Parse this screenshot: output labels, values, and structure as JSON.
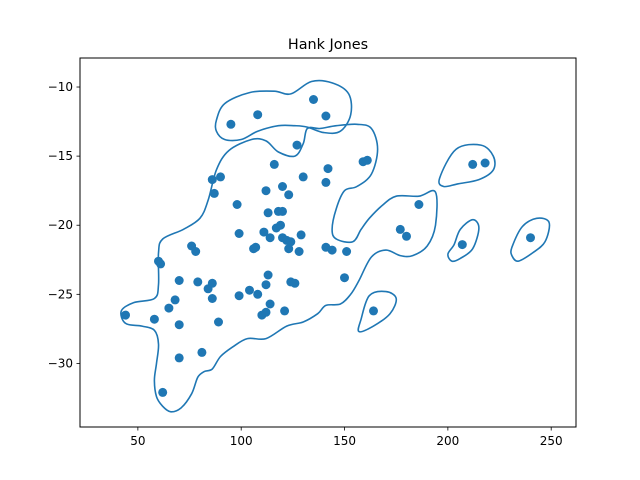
{
  "chart_data": {
    "type": "scatter",
    "title": "Hank Jones",
    "xlabel": "",
    "ylabel": "",
    "xlim": [
      22,
      262
    ],
    "ylim": [
      -34.6,
      -7.9
    ],
    "xticks": [
      50,
      100,
      150,
      200,
      250
    ],
    "yticks": [
      -10,
      -15,
      -20,
      -25,
      -30
    ],
    "grid": false,
    "color": "#1f77b4",
    "points": [
      [
        44,
        -26.5
      ],
      [
        58,
        -26.8
      ],
      [
        60,
        -22.6
      ],
      [
        61,
        -22.8
      ],
      [
        62,
        -32.1
      ],
      [
        65,
        -26.0
      ],
      [
        68,
        -25.4
      ],
      [
        70,
        -24.0
      ],
      [
        70,
        -27.2
      ],
      [
        70,
        -29.6
      ],
      [
        76,
        -21.5
      ],
      [
        78,
        -21.9
      ],
      [
        79,
        -24.1
      ],
      [
        81,
        -29.2
      ],
      [
        84,
        -24.6
      ],
      [
        86,
        -16.7
      ],
      [
        86,
        -24.2
      ],
      [
        86,
        -25.3
      ],
      [
        87,
        -17.7
      ],
      [
        89,
        -27.0
      ],
      [
        90,
        -16.5
      ],
      [
        95,
        -12.7
      ],
      [
        98,
        -18.5
      ],
      [
        99,
        -20.6
      ],
      [
        99,
        -25.1
      ],
      [
        104,
        -24.7
      ],
      [
        106,
        -21.7
      ],
      [
        107,
        -21.6
      ],
      [
        108,
        -25.0
      ],
      [
        108,
        -12.0
      ],
      [
        110,
        -26.5
      ],
      [
        111,
        -20.5
      ],
      [
        112,
        -17.5
      ],
      [
        112,
        -24.3
      ],
      [
        112,
        -26.3
      ],
      [
        113,
        -23.6
      ],
      [
        113,
        -19.1
      ],
      [
        114,
        -20.9
      ],
      [
        114,
        -25.7
      ],
      [
        116,
        -15.6
      ],
      [
        117,
        -20.2
      ],
      [
        118,
        -19.0
      ],
      [
        119,
        -20.0
      ],
      [
        120,
        -17.2
      ],
      [
        120,
        -19.0
      ],
      [
        120,
        -20.9
      ],
      [
        121,
        -26.2
      ],
      [
        122,
        -21.1
      ],
      [
        123,
        -17.8
      ],
      [
        123,
        -21.7
      ],
      [
        124,
        -24.1
      ],
      [
        124,
        -21.2
      ],
      [
        126,
        -24.2
      ],
      [
        127,
        -14.2
      ],
      [
        128,
        -21.9
      ],
      [
        129,
        -20.7
      ],
      [
        130,
        -16.5
      ],
      [
        135,
        -10.9
      ],
      [
        141,
        -16.9
      ],
      [
        141,
        -21.6
      ],
      [
        141,
        -12.1
      ],
      [
        142,
        -15.9
      ],
      [
        144,
        -21.8
      ],
      [
        150,
        -23.8
      ],
      [
        151,
        -21.9
      ],
      [
        159,
        -15.4
      ],
      [
        161,
        -15.3
      ],
      [
        164,
        -26.2
      ],
      [
        177,
        -20.3
      ],
      [
        180,
        -20.8
      ],
      [
        186,
        -18.5
      ],
      [
        207,
        -21.4
      ],
      [
        212,
        -15.6
      ],
      [
        218,
        -15.5
      ],
      [
        240,
        -20.9
      ]
    ],
    "contours": [
      [
        [
          44,
          -27.1
        ],
        [
          42,
          -26.2
        ],
        [
          48,
          -25.6
        ],
        [
          58,
          -25.3
        ],
        [
          60,
          -24.3
        ],
        [
          60,
          -22.0
        ],
        [
          62,
          -21.0
        ],
        [
          72,
          -20.3
        ],
        [
          80,
          -19.5
        ],
        [
          84,
          -18.2
        ],
        [
          88,
          -16.0
        ],
        [
          94,
          -14.6
        ],
        [
          105,
          -13.8
        ],
        [
          112,
          -13.9
        ],
        [
          118,
          -14.7
        ],
        [
          126,
          -15.0
        ],
        [
          130,
          -14.1
        ],
        [
          132,
          -13.0
        ],
        [
          138,
          -13.0
        ],
        [
          146,
          -12.8
        ],
        [
          156,
          -12.7
        ],
        [
          163,
          -13.0
        ],
        [
          166,
          -14.5
        ],
        [
          163,
          -16.3
        ],
        [
          156,
          -17.2
        ],
        [
          150,
          -17.5
        ],
        [
          146,
          -18.8
        ],
        [
          144,
          -20.3
        ],
        [
          146,
          -21.0
        ],
        [
          154,
          -21.2
        ],
        [
          158,
          -20.3
        ],
        [
          162,
          -19.5
        ],
        [
          168,
          -18.6
        ],
        [
          175,
          -17.9
        ],
        [
          186,
          -17.9
        ],
        [
          194,
          -17.6
        ],
        [
          194,
          -20.0
        ],
        [
          190,
          -21.5
        ],
        [
          183,
          -22.2
        ],
        [
          177,
          -22.2
        ],
        [
          170,
          -21.8
        ],
        [
          163,
          -22.3
        ],
        [
          157,
          -24.0
        ],
        [
          153,
          -25.0
        ],
        [
          148,
          -25.7
        ],
        [
          141,
          -25.8
        ],
        [
          137,
          -26.4
        ],
        [
          130,
          -27.0
        ],
        [
          122,
          -27.3
        ],
        [
          112,
          -28.2
        ],
        [
          103,
          -28.2
        ],
        [
          96,
          -28.8
        ],
        [
          90,
          -29.5
        ],
        [
          86,
          -30.4
        ],
        [
          82,
          -30.6
        ],
        [
          79,
          -31.0
        ],
        [
          76,
          -32.2
        ],
        [
          71,
          -33.2
        ],
        [
          66,
          -33.5
        ],
        [
          62,
          -33.1
        ],
        [
          59,
          -32.4
        ],
        [
          58,
          -31.2
        ],
        [
          59,
          -30.0
        ],
        [
          60,
          -28.6
        ],
        [
          58,
          -27.6
        ],
        [
          52,
          -27.3
        ],
        [
          44,
          -27.1
        ]
      ],
      [
        [
          88,
          -12.4
        ],
        [
          92,
          -11.2
        ],
        [
          104,
          -10.4
        ],
        [
          116,
          -10.3
        ],
        [
          124,
          -10.5
        ],
        [
          134,
          -9.6
        ],
        [
          144,
          -9.7
        ],
        [
          152,
          -10.5
        ],
        [
          153,
          -12.0
        ],
        [
          148,
          -13.2
        ],
        [
          140,
          -13.3
        ],
        [
          132,
          -12.9
        ],
        [
          126,
          -12.8
        ],
        [
          118,
          -12.8
        ],
        [
          108,
          -13.2
        ],
        [
          100,
          -13.8
        ],
        [
          92,
          -13.8
        ],
        [
          88,
          -13.2
        ],
        [
          88,
          -12.4
        ]
      ],
      [
        [
          196,
          -16.6
        ],
        [
          204,
          -14.5
        ],
        [
          216,
          -14.2
        ],
        [
          222,
          -15.0
        ],
        [
          222,
          -16.0
        ],
        [
          215,
          -16.7
        ],
        [
          205,
          -17.0
        ],
        [
          198,
          -17.2
        ],
        [
          196,
          -16.6
        ]
      ],
      [
        [
          203,
          -21.4
        ],
        [
          206,
          -20.3
        ],
        [
          212,
          -19.6
        ],
        [
          215,
          -20.2
        ],
        [
          212,
          -21.7
        ],
        [
          206,
          -22.4
        ],
        [
          202,
          -22.6
        ],
        [
          200,
          -22.1
        ],
        [
          203,
          -21.4
        ]
      ],
      [
        [
          231,
          -21.6
        ],
        [
          236,
          -20.1
        ],
        [
          243,
          -19.5
        ],
        [
          249,
          -19.8
        ],
        [
          247,
          -21.2
        ],
        [
          241,
          -22.0
        ],
        [
          234,
          -22.6
        ],
        [
          231,
          -22.2
        ],
        [
          231,
          -21.6
        ]
      ],
      [
        [
          158,
          -26.8
        ],
        [
          162,
          -25.1
        ],
        [
          170,
          -24.8
        ],
        [
          175,
          -25.3
        ],
        [
          172,
          -26.4
        ],
        [
          164,
          -27.3
        ],
        [
          157,
          -27.7
        ],
        [
          158,
          -26.8
        ]
      ]
    ]
  }
}
